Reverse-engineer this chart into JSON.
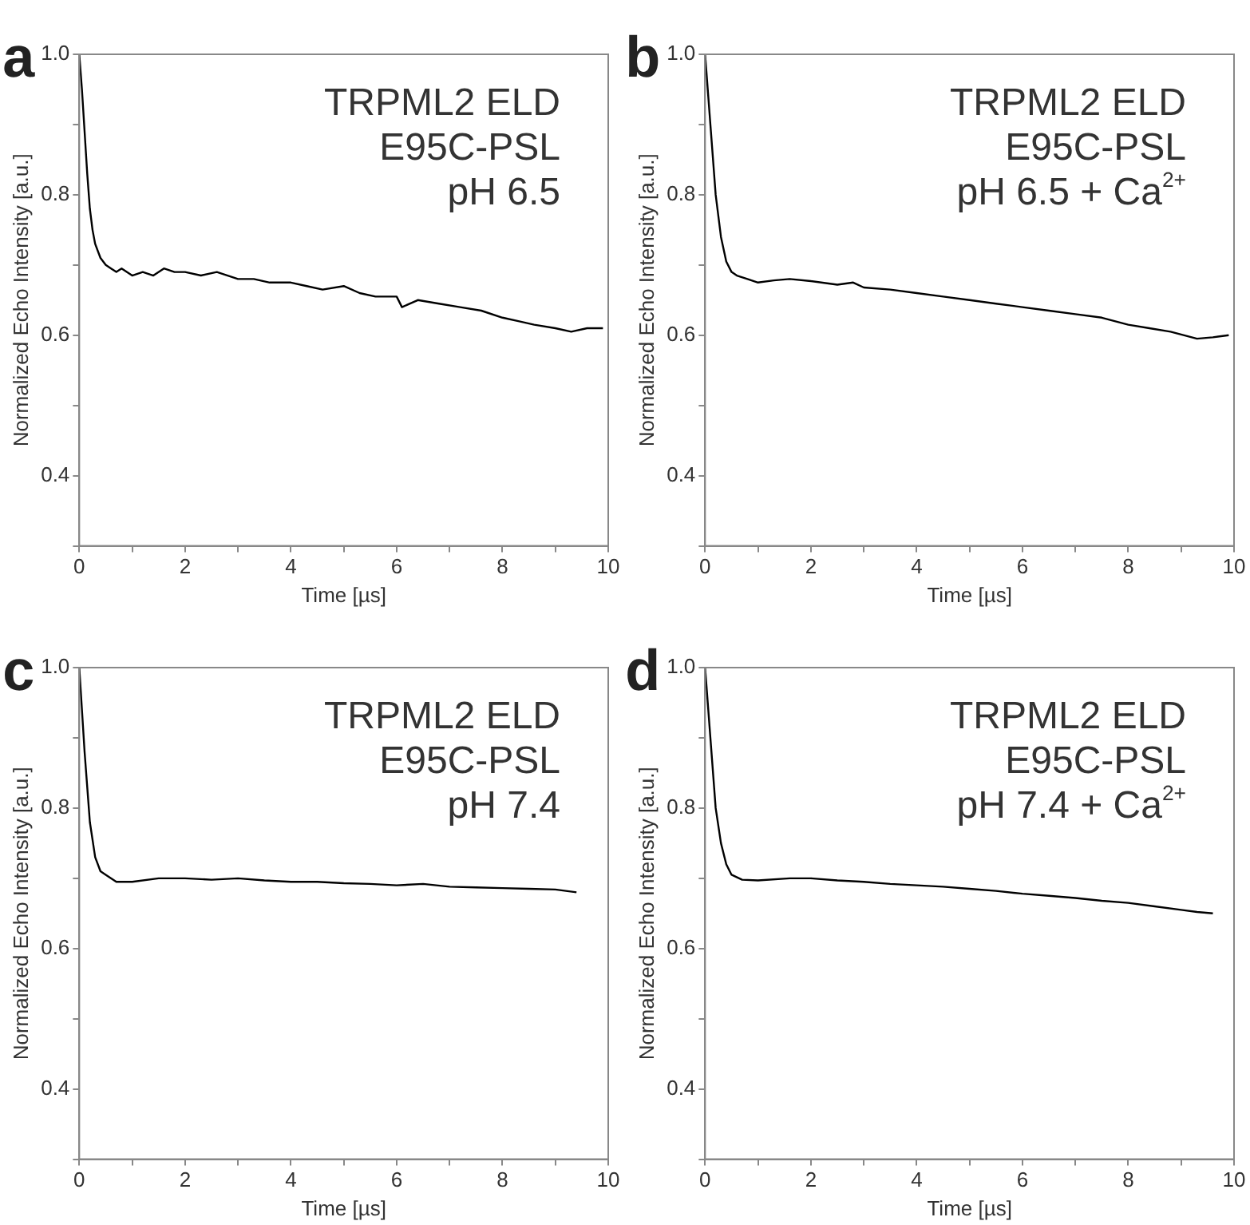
{
  "chart_data": [
    {
      "type": "line",
      "xlabel": "Time [µs]",
      "ylabel": "Normalized Echo Intensity [a.u.]",
      "annotations": [
        "a",
        "TRPML2 ELD",
        "E95C-PSL",
        "pH 6.5"
      ],
      "color": "#000000",
      "x": [
        0,
        0.05,
        0.1,
        0.15,
        0.2,
        0.25,
        0.3,
        0.35,
        0.4,
        0.5,
        0.6,
        0.7,
        0.8,
        1.0,
        1.2,
        1.4,
        1.6,
        1.8,
        2.0,
        2.3,
        2.6,
        3.0,
        3.3,
        3.6,
        4.0,
        4.3,
        4.6,
        5.0,
        5.3,
        5.6,
        6.0,
        6.1,
        6.4,
        6.8,
        7.2,
        7.6,
        8.0,
        8.3,
        8.6,
        9.0,
        9.3,
        9.6,
        9.9
      ],
      "values": [
        1.0,
        0.95,
        0.89,
        0.83,
        0.78,
        0.75,
        0.73,
        0.72,
        0.71,
        0.7,
        0.695,
        0.69,
        0.695,
        0.685,
        0.69,
        0.685,
        0.695,
        0.69,
        0.69,
        0.685,
        0.69,
        0.68,
        0.68,
        0.675,
        0.675,
        0.67,
        0.665,
        0.67,
        0.66,
        0.655,
        0.655,
        0.64,
        0.65,
        0.645,
        0.64,
        0.635,
        0.625,
        0.62,
        0.615,
        0.61,
        0.605,
        0.61,
        0.61
      ],
      "xlim": [
        0,
        10
      ],
      "ylim": [
        0.3,
        1.0
      ],
      "xticks": [
        0,
        {
          "value": 1,
          "label": null
        },
        2,
        {
          "value": 3,
          "label": null
        },
        4,
        {
          "value": 5,
          "label": null
        },
        6,
        {
          "value": 7,
          "label": null
        },
        8,
        {
          "value": 9,
          "label": null
        },
        10
      ],
      "yticks": [
        {
          "value": 0.3,
          "label": null
        },
        0.4,
        {
          "value": 0.5,
          "label": null
        },
        0.6,
        {
          "value": 0.7,
          "label": null
        },
        0.8,
        {
          "value": 0.9,
          "label": null
        },
        {
          "value": 1,
          "label": "1.0"
        }
      ]
    },
    {
      "type": "line",
      "xlabel": "Time [µs]",
      "ylabel": "Normalized Echo Intensity [a.u.]",
      "annotations": [
        "b",
        "TRPML2 ELD",
        "E95C-PSL",
        "pH 6.5 + Ca$^{2+}$"
      ],
      "color": "#000000",
      "x": [
        0,
        0.1,
        0.2,
        0.3,
        0.4,
        0.5,
        0.6,
        0.8,
        1.0,
        1.3,
        1.6,
        2.0,
        2.5,
        2.8,
        3.0,
        3.5,
        4.0,
        4.5,
        5.0,
        5.5,
        6.0,
        6.5,
        7.0,
        7.5,
        8.0,
        8.4,
        8.8,
        9.3,
        9.6,
        9.9
      ],
      "values": [
        1.0,
        0.9,
        0.8,
        0.74,
        0.705,
        0.69,
        0.685,
        0.68,
        0.675,
        0.678,
        0.68,
        0.677,
        0.672,
        0.675,
        0.668,
        0.665,
        0.66,
        0.655,
        0.65,
        0.645,
        0.64,
        0.635,
        0.63,
        0.625,
        0.615,
        0.61,
        0.605,
        0.595,
        0.597,
        0.6
      ],
      "xlim": [
        0,
        10
      ],
      "ylim": [
        0.3,
        1.0
      ],
      "xticks": [
        0,
        {
          "value": 1,
          "label": null
        },
        2,
        {
          "value": 3,
          "label": null
        },
        4,
        {
          "value": 5,
          "label": null
        },
        6,
        {
          "value": 7,
          "label": null
        },
        8,
        {
          "value": 9,
          "label": null
        },
        10
      ],
      "yticks": [
        {
          "value": 0.3,
          "label": null
        },
        0.4,
        {
          "value": 0.5,
          "label": null
        },
        0.6,
        {
          "value": 0.7,
          "label": null
        },
        0.8,
        {
          "value": 0.9,
          "label": null
        },
        {
          "value": 1,
          "label": "1.0"
        }
      ]
    },
    {
      "type": "line",
      "xlabel": "Time [µs]",
      "ylabel": "Normalized Echo Intensity [a.u.]",
      "annotations": [
        "c",
        "TRPML2 ELD",
        "E95C-PSL",
        "pH 7.4"
      ],
      "color": "#000000",
      "x": [
        0,
        0.1,
        0.2,
        0.3,
        0.4,
        0.5,
        0.7,
        1.0,
        1.5,
        2.0,
        2.5,
        3.0,
        3.5,
        4.0,
        4.5,
        5.0,
        5.5,
        6.0,
        6.5,
        7.0,
        7.5,
        8.0,
        8.5,
        9.0,
        9.4
      ],
      "values": [
        1.0,
        0.88,
        0.78,
        0.73,
        0.71,
        0.705,
        0.695,
        0.695,
        0.7,
        0.7,
        0.698,
        0.7,
        0.697,
        0.695,
        0.695,
        0.693,
        0.692,
        0.69,
        0.692,
        0.688,
        0.687,
        0.686,
        0.685,
        0.684,
        0.68
      ],
      "xlim": [
        0,
        10
      ],
      "ylim": [
        0.3,
        1.0
      ],
      "xticks": [
        0,
        {
          "value": 1,
          "label": null
        },
        2,
        {
          "value": 3,
          "label": null
        },
        4,
        {
          "value": 5,
          "label": null
        },
        6,
        {
          "value": 7,
          "label": null
        },
        8,
        {
          "value": 9,
          "label": null
        },
        10
      ],
      "yticks": [
        {
          "value": 0.3,
          "label": null
        },
        0.4,
        {
          "value": 0.5,
          "label": null
        },
        0.6,
        {
          "value": 0.7,
          "label": null
        },
        0.8,
        {
          "value": 0.9,
          "label": null
        },
        {
          "value": 1,
          "label": "1.0"
        }
      ]
    },
    {
      "type": "line",
      "xlabel": "Time [µs]",
      "ylabel": "Normalized Echo Intensity [a.u.]",
      "annotations": [
        "d",
        "TRPML2 ELD",
        "E95C-PSL",
        "pH 7.4 + Ca$^{2+}$"
      ],
      "color": "#000000",
      "x": [
        0,
        0.1,
        0.2,
        0.3,
        0.4,
        0.5,
        0.7,
        1.0,
        1.6,
        2.0,
        2.5,
        3.0,
        3.5,
        4.0,
        4.5,
        5.0,
        5.5,
        6.0,
        6.5,
        7.0,
        7.5,
        8.0,
        8.5,
        9.0,
        9.3,
        9.6
      ],
      "values": [
        1.0,
        0.9,
        0.8,
        0.75,
        0.72,
        0.705,
        0.698,
        0.697,
        0.7,
        0.7,
        0.697,
        0.695,
        0.692,
        0.69,
        0.688,
        0.685,
        0.682,
        0.678,
        0.675,
        0.672,
        0.668,
        0.665,
        0.66,
        0.655,
        0.652,
        0.65
      ],
      "xlim": [
        0,
        10
      ],
      "ylim": [
        0.3,
        1.0
      ],
      "xticks": [
        0,
        {
          "value": 1,
          "label": null
        },
        2,
        {
          "value": 3,
          "label": null
        },
        4,
        {
          "value": 5,
          "label": null
        },
        6,
        {
          "value": 7,
          "label": null
        },
        8,
        {
          "value": 9,
          "label": null
        },
        10
      ],
      "yticks": [
        {
          "value": 0.3,
          "label": null
        },
        0.4,
        {
          "value": 0.5,
          "label": null
        },
        0.6,
        {
          "value": 0.7,
          "label": null
        },
        0.8,
        {
          "value": 0.9,
          "label": null
        },
        {
          "value": 1,
          "label": "1.0"
        }
      ]
    }
  ]
}
